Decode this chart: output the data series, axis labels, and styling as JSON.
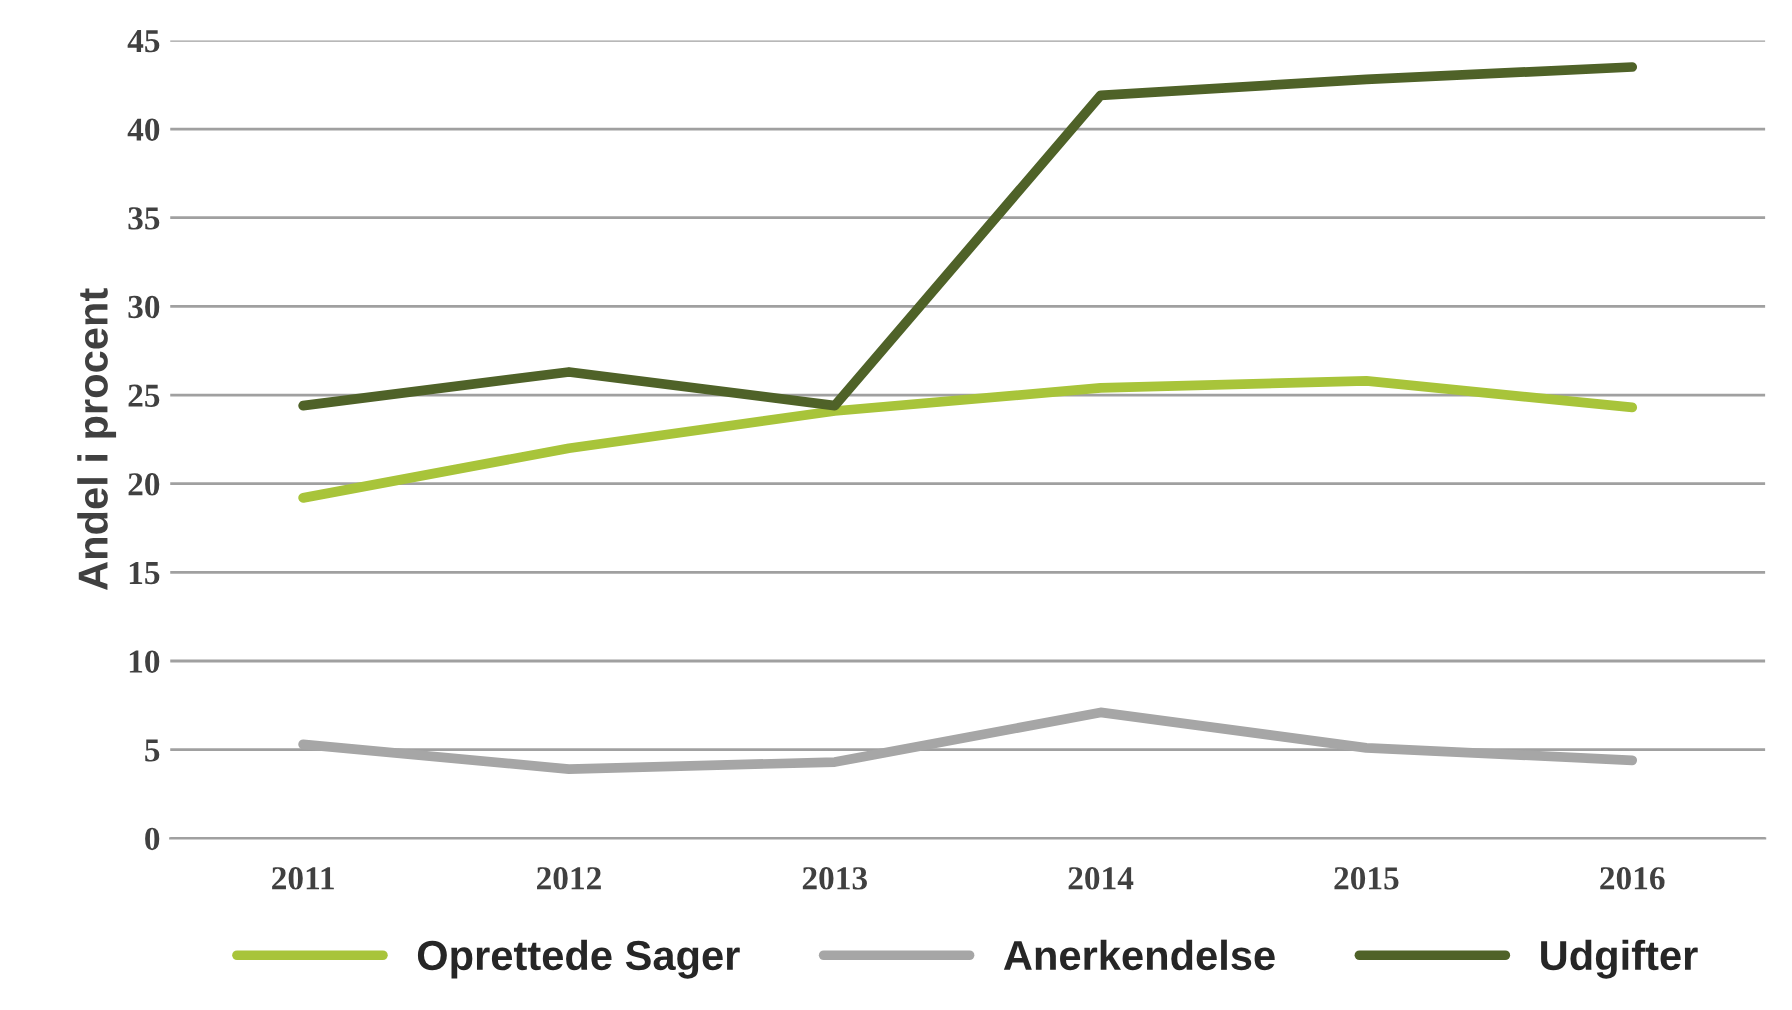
{
  "chart_data": {
    "type": "line",
    "ylabel": "Andel i procent",
    "categories": [
      "2011",
      "2012",
      "2013",
      "2014",
      "2015",
      "2016"
    ],
    "series": [
      {
        "name": "Oprettede Sager",
        "color": "#a8c43a",
        "values": [
          19.2,
          22.0,
          24.1,
          25.4,
          25.8,
          24.3
        ]
      },
      {
        "name": "Anerkendelse",
        "color": "#a6a6a6",
        "values": [
          5.3,
          3.9,
          4.3,
          7.1,
          5.1,
          4.4
        ]
      },
      {
        "name": "Udgifter",
        "color": "#4f6228",
        "values": [
          24.4,
          26.3,
          24.4,
          41.9,
          42.8,
          43.5
        ]
      }
    ],
    "ylim": [
      0,
      45
    ],
    "yticks": [
      0,
      5,
      10,
      15,
      20,
      25,
      30,
      35,
      40,
      45
    ],
    "grid": "y",
    "legend": "bottom",
    "marker": "none",
    "line_style": "solid"
  }
}
